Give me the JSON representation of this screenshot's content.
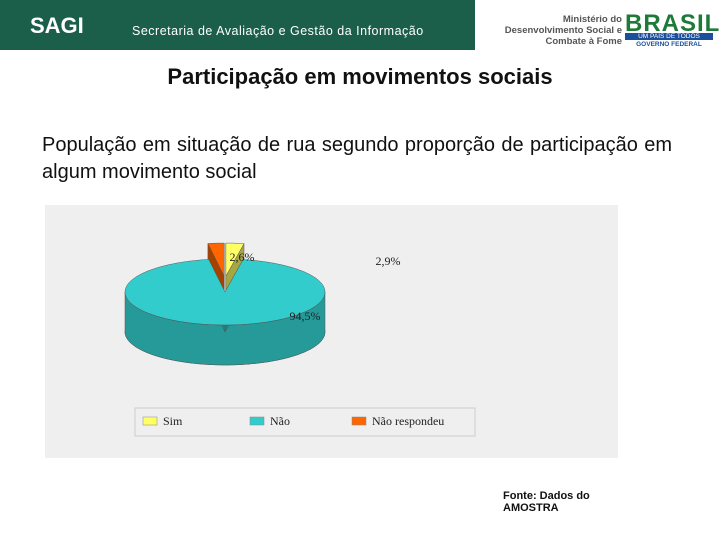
{
  "header": {
    "brand": "SAGI",
    "department": "Secretaria de Avaliação e Gestão da Informação",
    "ministry": "Ministério do Desenvolvimento Social e Combate à Fome",
    "logo": "BRASIL",
    "motto": "UM PAÍS DE TODOS",
    "government": "GOVERNO FEDERAL"
  },
  "slide": {
    "title": "Participação em movimentos sociais",
    "subtitle": "População em situação de rua segundo proporção de participação em algum movimento social",
    "source": "Fonte: Dados do AMOSTRA"
  },
  "chart_data": {
    "type": "pie",
    "categories": [
      "Sim",
      "Não",
      "Não respondeu"
    ],
    "values": [
      2.9,
      94.5,
      2.6
    ],
    "value_labels": [
      "2,9%",
      "94,5%",
      "2,6%"
    ],
    "colors": [
      "#ffff66",
      "#33cccc",
      "#ff6600"
    ],
    "legend": "bottom"
  }
}
